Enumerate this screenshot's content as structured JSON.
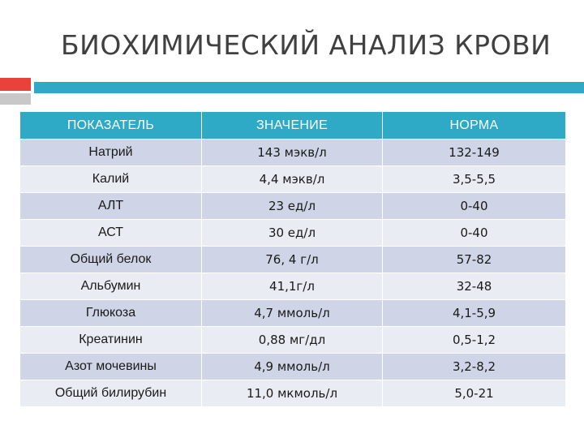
{
  "title": "БИОХИМИЧЕСКИЙ АНАЛИЗ КРОВИ",
  "table": {
    "headers": [
      "ПОКАЗАТЕЛЬ",
      "ЗНАЧЕНИЕ",
      "НОРМА"
    ],
    "rows": [
      [
        "Натрий",
        "143 мэкв/л",
        "132-149"
      ],
      [
        "Калий",
        "4,4 мэкв/л",
        "3,5-5,5"
      ],
      [
        "АЛТ",
        "23 ед/л",
        "0-40"
      ],
      [
        "АСТ",
        "30 ед/л",
        "0-40"
      ],
      [
        "Общий белок",
        "76, 4 г/л",
        "57-82"
      ],
      [
        "Альбумин",
        "41,1г/л",
        "32-48"
      ],
      [
        "Глюкоза",
        "4,7 ммоль/л",
        "4,1-5,9"
      ],
      [
        "Креатинин",
        "0,88 мг/дл",
        "0,5-1,2"
      ],
      [
        "Азот мочевины",
        "4,9 ммоль/л",
        "3,2-8,2"
      ],
      [
        "Общий билирубин",
        "11,0 мкмоль/л",
        "5,0-21"
      ]
    ]
  },
  "colors": {
    "accent": "#2eaac7",
    "red_square": "#e8423a",
    "gray_square": "#c8c8c8",
    "row_dark": "#cfd5e6",
    "row_light": "#e9ecf3"
  }
}
